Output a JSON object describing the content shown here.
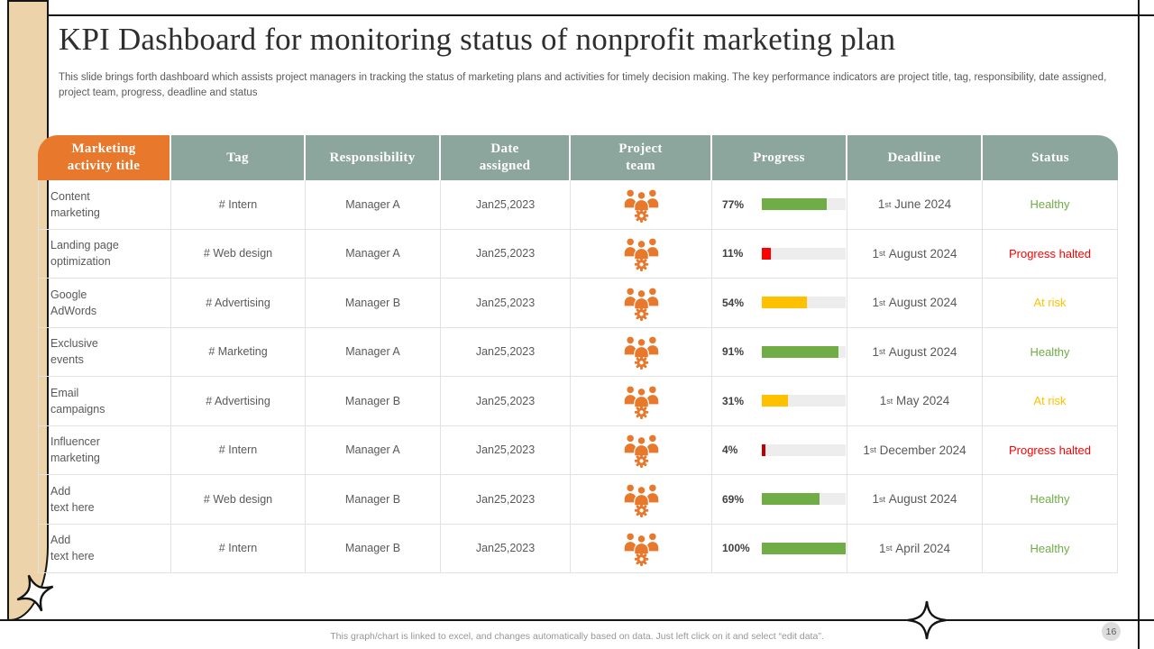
{
  "header": {
    "title": "KPI Dashboard for monitoring status of nonprofit marketing plan",
    "subtitle": "This slide brings forth dashboard which assists project managers in tracking the status of marketing plans and activities for timely decision making. The key performance indicators are project title, tag, responsibility, date assigned, project team, progress, deadline and status"
  },
  "colors": {
    "orange": "#E8782C",
    "sage": "#8CA69E",
    "tan": "#EDD3A9",
    "green": "#70AD47",
    "yellow": "#FFC000",
    "red": "#FF0000",
    "dark_red": "#C00000",
    "track_gray": "#EDEDED",
    "grid_line": "#E2E2E2"
  },
  "table": {
    "columns": [
      {
        "key": "activity",
        "label": "Marketing\nactivity title"
      },
      {
        "key": "tag",
        "label": "Tag"
      },
      {
        "key": "responsibility",
        "label": "Responsibility"
      },
      {
        "key": "date",
        "label": "Date\nassigned"
      },
      {
        "key": "team",
        "label": "Project\nteam"
      },
      {
        "key": "progress",
        "label": "Progress"
      },
      {
        "key": "deadline",
        "label": "Deadline"
      },
      {
        "key": "status",
        "label": "Status"
      }
    ],
    "rows": [
      {
        "activity": "Content\nmarketing",
        "tag": "# Intern",
        "responsibility": "Manager A",
        "date": "Jan25,2023",
        "team_icon": "project-team-icon",
        "progress": {
          "label": "77%",
          "value": 77,
          "color": "green"
        },
        "deadline": {
          "day": "1",
          "ordinal": "st",
          "rest": "June 2024"
        },
        "status": {
          "label": "Healthy",
          "color": "green"
        }
      },
      {
        "activity": "Landing page\noptimization",
        "tag": "# Web design",
        "responsibility": "Manager A",
        "date": "Jan25,2023",
        "team_icon": "project-team-icon",
        "progress": {
          "label": "11%",
          "value": 11,
          "color": "red"
        },
        "deadline": {
          "day": "1",
          "ordinal": "st",
          "rest": "August 2024"
        },
        "status": {
          "label": "Progress halted",
          "color": "red"
        }
      },
      {
        "activity": "Google\nAdWords",
        "tag": "# Advertising",
        "responsibility": "Manager B",
        "date": "Jan25,2023",
        "team_icon": "project-team-icon",
        "progress": {
          "label": "54%",
          "value": 54,
          "color": "yellow"
        },
        "deadline": {
          "day": "1",
          "ordinal": "st",
          "rest": "August 2024"
        },
        "status": {
          "label": "At risk",
          "color": "yellow"
        }
      },
      {
        "activity": "Exclusive\nevents",
        "tag": "# Marketing",
        "responsibility": "Manager A",
        "date": "Jan25,2023",
        "team_icon": "project-team-icon",
        "progress": {
          "label": "91%",
          "value": 91,
          "color": "green"
        },
        "deadline": {
          "day": "1",
          "ordinal": "st",
          "rest": "August 2024"
        },
        "status": {
          "label": "Healthy",
          "color": "green"
        }
      },
      {
        "activity": "Email\ncampaigns",
        "tag": "# Advertising",
        "responsibility": "Manager B",
        "date": "Jan25,2023",
        "team_icon": "project-team-icon",
        "progress": {
          "label": "31%",
          "value": 31,
          "color": "yellow"
        },
        "deadline": {
          "day": "1",
          "ordinal": "st",
          "rest": "May 2024"
        },
        "status": {
          "label": "At risk",
          "color": "yellow"
        }
      },
      {
        "activity": "Influencer\nmarketing",
        "tag": "# Intern",
        "responsibility": "Manager A",
        "date": "Jan25,2023",
        "team_icon": "project-team-icon",
        "progress": {
          "label": "4%",
          "value": 4,
          "color": "dark_red"
        },
        "deadline": {
          "day": "1",
          "ordinal": "st",
          "rest": "December 2024"
        },
        "status": {
          "label": "Progress halted",
          "color": "red"
        }
      },
      {
        "activity": "Add\ntext here",
        "tag": "# Web design",
        "responsibility": "Manager B",
        "date": "Jan25,2023",
        "team_icon": "project-team-icon",
        "progress": {
          "label": "69%",
          "value": 69,
          "color": "green"
        },
        "deadline": {
          "day": "1",
          "ordinal": "st",
          "rest": "August 2024"
        },
        "status": {
          "label": "Healthy",
          "color": "green"
        }
      },
      {
        "activity": "Add\ntext here",
        "tag": "# Intern",
        "responsibility": "Manager B",
        "date": "Jan25,2023",
        "team_icon": "project-team-icon",
        "progress": {
          "label": "100%",
          "value": 100,
          "color": "green"
        },
        "deadline": {
          "day": "1",
          "ordinal": "st",
          "rest": "April 2024"
        },
        "status": {
          "label": "Healthy",
          "color": "green"
        }
      }
    ]
  },
  "footer": {
    "note": "This graph/chart is linked to excel,  and changes automatically based on data. Just left click on it and select “edit data”.",
    "page_number": "16"
  }
}
